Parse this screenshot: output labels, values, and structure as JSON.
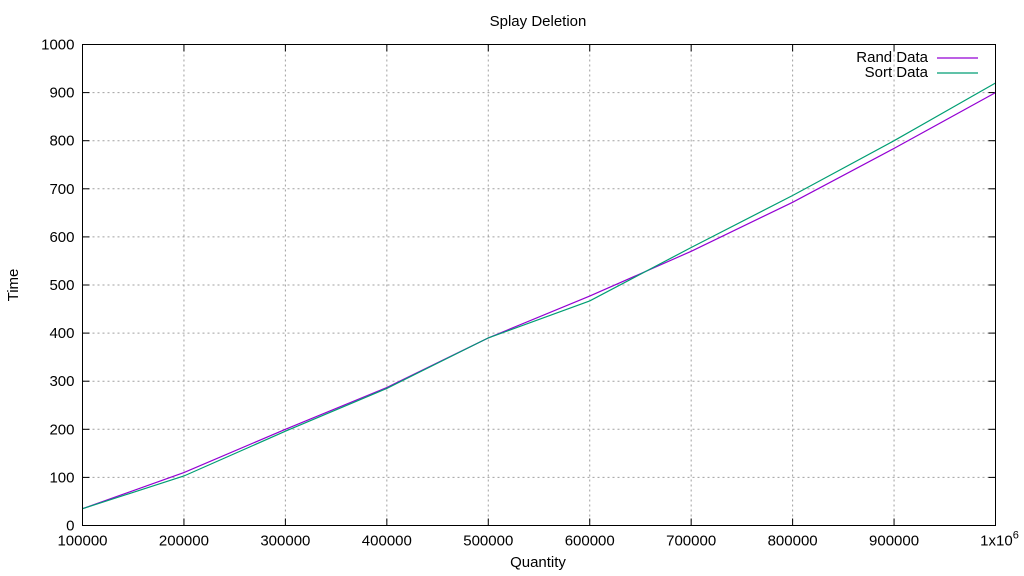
{
  "chart_data": {
    "type": "line",
    "title": "Splay Deletion",
    "xlabel": "Quantity",
    "ylabel": "Time",
    "xlim": [
      100000,
      1000000
    ],
    "ylim": [
      0,
      1000
    ],
    "xticks": [
      100000,
      200000,
      300000,
      400000,
      500000,
      600000,
      700000,
      800000,
      900000,
      1000000
    ],
    "xtick_labels": [
      "100000",
      "200000",
      "300000",
      "400000",
      "500000",
      "600000",
      "700000",
      "800000",
      "900000",
      "1x10"
    ],
    "last_xtick_exponent": "6",
    "yticks": [
      0,
      100,
      200,
      300,
      400,
      500,
      600,
      700,
      800,
      900,
      1000
    ],
    "ytick_labels": [
      "0",
      "100",
      "200",
      "300",
      "400",
      "500",
      "600",
      "700",
      "800",
      "900",
      "1000"
    ],
    "grid": true,
    "legend_position": "top-right",
    "x": [
      100000,
      200000,
      300000,
      400000,
      500000,
      600000,
      700000,
      800000,
      900000,
      1000000
    ],
    "series": [
      {
        "name": "Rand Data",
        "color": "#9400d3",
        "values": [
          35,
          110,
          200,
          287,
          390,
          477,
          570,
          672,
          784,
          900
        ]
      },
      {
        "name": "Sort Data",
        "color": "#009e73",
        "values": [
          35,
          103,
          196,
          285,
          390,
          467,
          578,
          686,
          800,
          920
        ]
      }
    ]
  }
}
